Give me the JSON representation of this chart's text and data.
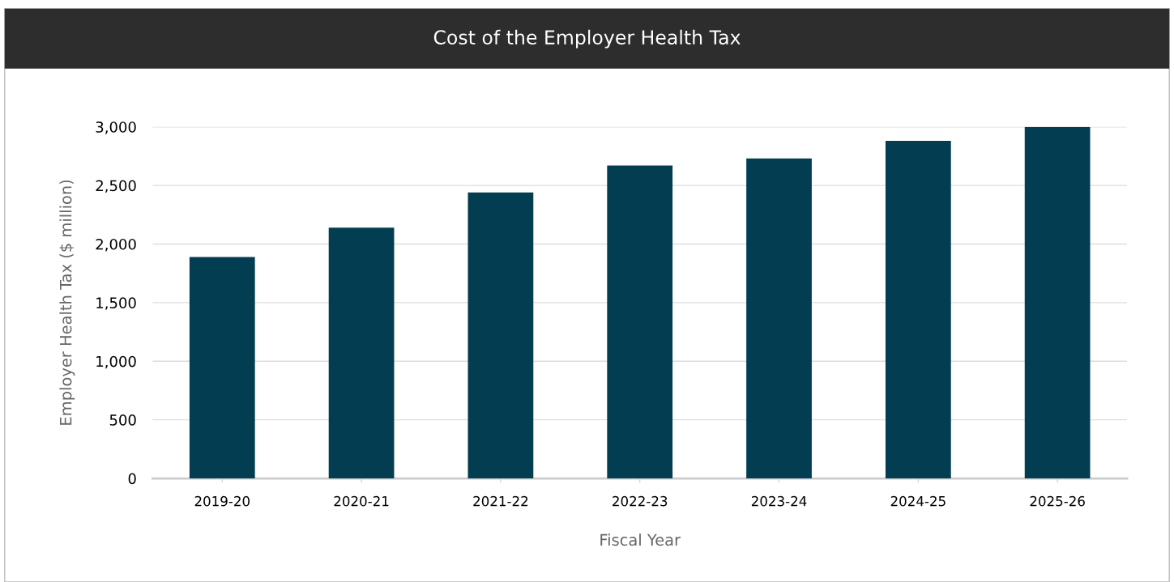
{
  "chart_data": {
    "type": "bar",
    "title": "Cost of the Employer Health Tax",
    "xlabel": "Fiscal Year",
    "ylabel": "Employer Health Tax ($ million)",
    "categories": [
      "2019-20",
      "2020-21",
      "2021-22",
      "2022-23",
      "2023-24",
      "2024-25",
      "2025-26"
    ],
    "values": [
      1890,
      2140,
      2440,
      2670,
      2730,
      2880,
      3000
    ],
    "color": "#023d51",
    "ylim": [
      0,
      3000
    ],
    "yticks": [
      {
        "value": 0,
        "label": "0"
      },
      {
        "value": 500,
        "label": "500"
      },
      {
        "value": 1000,
        "label": "1,000"
      },
      {
        "value": 1500,
        "label": "1,500"
      },
      {
        "value": 2000,
        "label": "2,000"
      },
      {
        "value": 2500,
        "label": "2,500"
      },
      {
        "value": 3000,
        "label": "3,000"
      }
    ],
    "grid": "y",
    "legend": false
  }
}
